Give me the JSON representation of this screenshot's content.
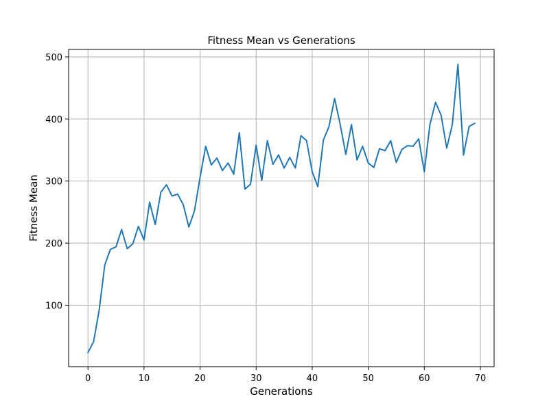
{
  "chart_data": {
    "type": "line",
    "title": "Fitness Mean vs Generations",
    "xlabel": "Generations",
    "ylabel": "Fitness Mean",
    "xlim": [
      -3.45,
      72.45
    ],
    "ylim": [
      1,
      512
    ],
    "xticks": [
      0,
      10,
      20,
      30,
      40,
      50,
      60,
      70
    ],
    "yticks": [
      100,
      200,
      300,
      400,
      500
    ],
    "grid": true,
    "color": "#1f77b4",
    "series": [
      {
        "x": [
          0,
          1,
          2,
          3,
          4,
          5,
          6,
          7,
          8,
          9,
          10,
          11,
          12,
          13,
          14,
          15,
          16,
          17,
          18,
          19,
          20,
          21,
          22,
          23,
          24,
          25,
          26,
          27,
          28,
          29,
          30,
          31,
          32,
          33,
          34,
          35,
          36,
          37,
          38,
          39,
          40,
          41,
          42,
          43,
          44,
          45,
          46,
          47,
          48,
          49,
          50,
          51,
          52,
          53,
          54,
          55,
          56,
          57,
          58,
          59,
          60,
          61,
          62,
          63,
          64,
          65,
          66,
          67,
          68,
          69
        ],
        "values": [
          24,
          41,
          92,
          165,
          190,
          194,
          222,
          191,
          199,
          227,
          205,
          266,
          230,
          282,
          294,
          276,
          279,
          262,
          226,
          252,
          306,
          356,
          326,
          337,
          317,
          329,
          311,
          378,
          287,
          295,
          358,
          301,
          365,
          327,
          342,
          321,
          338,
          321,
          373,
          365,
          315,
          291,
          366,
          388,
          433,
          391,
          343,
          391,
          334,
          356,
          329,
          322,
          352,
          349,
          365,
          330,
          351,
          357,
          356,
          368,
          315,
          391,
          427,
          406,
          353,
          391,
          488,
          342,
          388,
          393
        ]
      }
    ]
  }
}
